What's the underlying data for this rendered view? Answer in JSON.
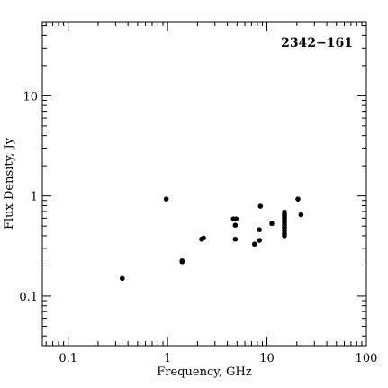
{
  "chart_data": {
    "type": "scatter",
    "title": "2342−161",
    "xlabel": "Frequency, GHz",
    "ylabel": "Flux Density, Jy",
    "x_scale": "log",
    "y_scale": "log",
    "xlim": [
      0.055,
      100
    ],
    "ylim": [
      0.032,
      55
    ],
    "x_ticks": [
      {
        "value": 0.1,
        "label": "0.1"
      },
      {
        "value": 1,
        "label": "1"
      },
      {
        "value": 10,
        "label": "10"
      },
      {
        "value": 100,
        "label": "100"
      }
    ],
    "y_ticks": [
      {
        "value": 0.1,
        "label": "0.1"
      },
      {
        "value": 1,
        "label": "1"
      },
      {
        "value": 10,
        "label": "10"
      }
    ],
    "grid": false,
    "legend": "none",
    "marker_color": "#000000",
    "series": [
      {
        "points": [
          {
            "x": 0.35,
            "y": 0.15
          },
          {
            "x": 0.97,
            "y": 0.93
          },
          {
            "x": 1.4,
            "y": 0.22
          },
          {
            "x": 1.4,
            "y": 0.225
          },
          {
            "x": 2.2,
            "y": 0.37
          },
          {
            "x": 2.3,
            "y": 0.38
          },
          {
            "x": 4.6,
            "y": 0.59
          },
          {
            "x": 4.9,
            "y": 0.59
          },
          {
            "x": 4.8,
            "y": 0.51
          },
          {
            "x": 4.8,
            "y": 0.37
          },
          {
            "x": 7.5,
            "y": 0.33
          },
          {
            "x": 8.4,
            "y": 0.36
          },
          {
            "x": 8.4,
            "y": 0.46
          },
          {
            "x": 8.6,
            "y": 0.79
          },
          {
            "x": 11.2,
            "y": 0.53
          },
          {
            "x": 15,
            "y": 0.4
          },
          {
            "x": 15,
            "y": 0.42
          },
          {
            "x": 15,
            "y": 0.45
          },
          {
            "x": 15,
            "y": 0.48
          },
          {
            "x": 15,
            "y": 0.51
          },
          {
            "x": 15,
            "y": 0.54
          },
          {
            "x": 15,
            "y": 0.57
          },
          {
            "x": 15,
            "y": 0.6
          },
          {
            "x": 15,
            "y": 0.63
          },
          {
            "x": 15,
            "y": 0.66
          },
          {
            "x": 15,
            "y": 0.69
          },
          {
            "x": 20.5,
            "y": 0.93
          },
          {
            "x": 22,
            "y": 0.65
          }
        ]
      }
    ]
  }
}
